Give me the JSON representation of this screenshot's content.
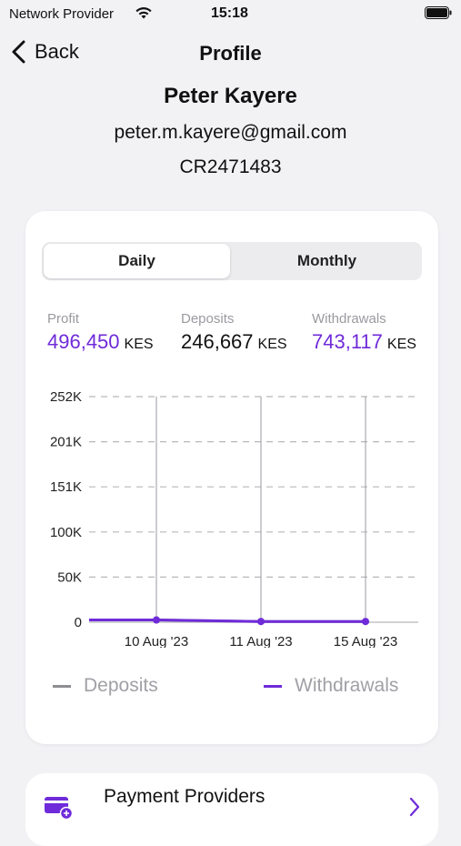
{
  "status_bar": {
    "carrier": "Network Provider",
    "time": "15:18"
  },
  "nav": {
    "back_label": "Back",
    "title": "Profile"
  },
  "profile": {
    "name": "Peter Kayere",
    "email": "peter.m.kayere@gmail.com",
    "id": "CR2471483"
  },
  "segments": {
    "daily": "Daily",
    "monthly": "Monthly",
    "selected": "Daily"
  },
  "stats": {
    "profit": {
      "label": "Profit",
      "value": "496,450",
      "currency": "KES"
    },
    "deposits": {
      "label": "Deposits",
      "value": "246,667",
      "currency": "KES"
    },
    "withdrawals": {
      "label": "Withdrawals",
      "value": "743,117",
      "currency": "KES"
    }
  },
  "colors": {
    "accent": "#6f2bd9",
    "deposits": "#8e8e93"
  },
  "chart_data": {
    "type": "line",
    "x": [
      "10 Aug '23",
      "11 Aug '23",
      "15 Aug '23"
    ],
    "y_ticks": [
      "252K",
      "201K",
      "151K",
      "100K",
      "50K",
      "0"
    ],
    "ylim": [
      0,
      252000
    ],
    "grid": true,
    "legend_placement": "bottom",
    "series": [
      {
        "name": "Deposits",
        "values": [
          2500,
          800,
          800
        ]
      },
      {
        "name": "Withdrawals",
        "values": [
          2500,
          800,
          800
        ]
      }
    ]
  },
  "legend": {
    "deposits": "Deposits",
    "withdrawals": "Withdrawals"
  },
  "providers": {
    "label": "Payment Providers"
  }
}
